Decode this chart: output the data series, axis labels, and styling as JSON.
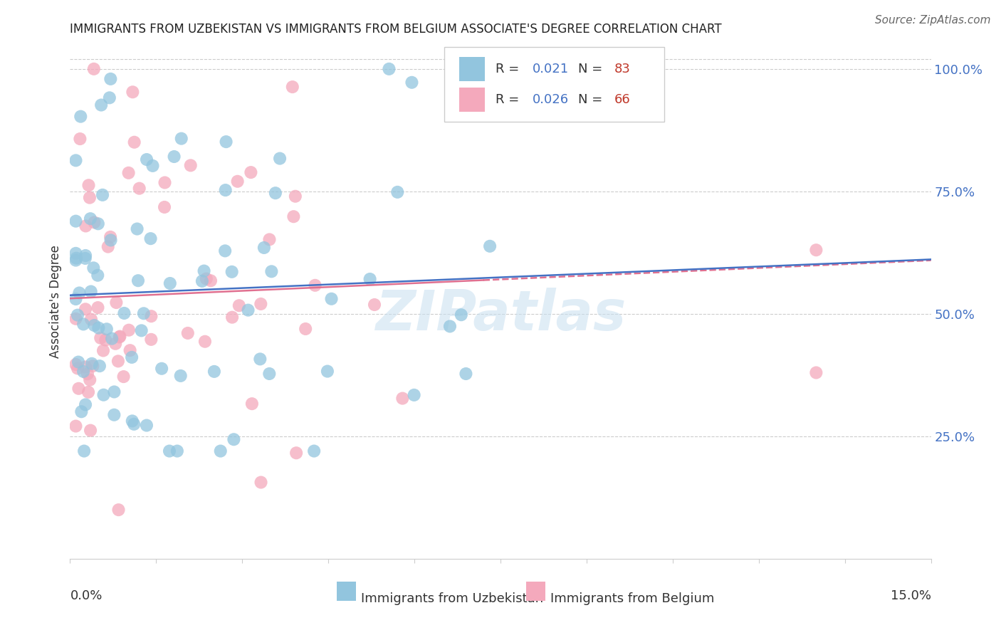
{
  "title": "IMMIGRANTS FROM UZBEKISTAN VS IMMIGRANTS FROM BELGIUM ASSOCIATE'S DEGREE CORRELATION CHART",
  "source_text": "Source: ZipAtlas.com",
  "ylabel": "Associate's Degree",
  "color_uzbekistan": "#92c5de",
  "color_belgium": "#f4a9bc",
  "line_color_uzbekistan": "#4472c4",
  "line_color_belgium": "#e07090",
  "watermark": "ZIPatlas",
  "xlim": [
    0.0,
    0.15
  ],
  "ylim": [
    0.0,
    1.05
  ],
  "right_yticks": [
    1.0,
    0.75,
    0.5,
    0.25
  ],
  "right_yticklabels": [
    "100.0%",
    "75.0%",
    "50.0%",
    "25.0%"
  ],
  "r_uzbekistan": "0.021",
  "n_uzbekistan": 83,
  "r_belgium": "0.026",
  "n_belgium": 66,
  "legend_r_color": "#4472c4",
  "legend_n_color": "#c0392b",
  "title_color": "#222222",
  "source_color": "#666666",
  "watermark_color": "#c8dff0",
  "grid_color": "#cccccc",
  "right_axis_color": "#4472c4"
}
